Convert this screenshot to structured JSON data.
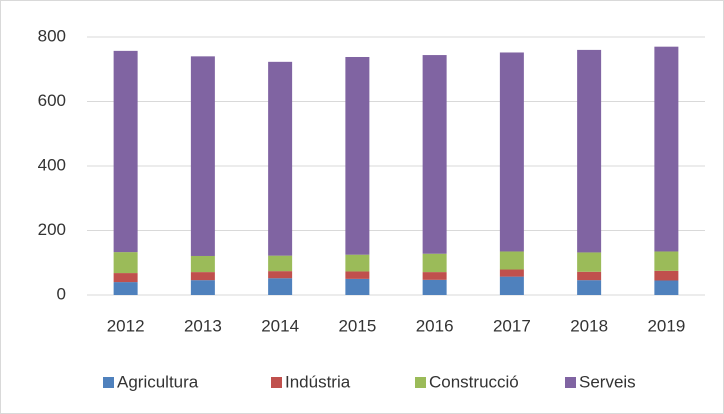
{
  "chart_data": {
    "type": "stacked_bar",
    "categories": [
      "2012",
      "2013",
      "2014",
      "2015",
      "2016",
      "2017",
      "2018",
      "2019"
    ],
    "series": [
      {
        "name": "Agricultura",
        "color": "#4f81bd",
        "values": [
          40,
          46,
          52,
          50,
          47,
          57,
          46,
          45
        ]
      },
      {
        "name": "Indústria",
        "color": "#c0504d",
        "values": [
          28,
          25,
          22,
          23,
          24,
          22,
          26,
          30
        ]
      },
      {
        "name": "Construcció",
        "color": "#9bbb59",
        "values": [
          65,
          50,
          48,
          52,
          57,
          56,
          60,
          60
        ]
      },
      {
        "name": "Serveis",
        "color": "#8064a2",
        "values": [
          624,
          619,
          601,
          613,
          616,
          617,
          628,
          635
        ]
      }
    ],
    "ylim": [
      0,
      800
    ],
    "yticks": [
      0,
      200,
      400,
      600,
      800
    ],
    "grid": true,
    "legend": "bottom"
  }
}
